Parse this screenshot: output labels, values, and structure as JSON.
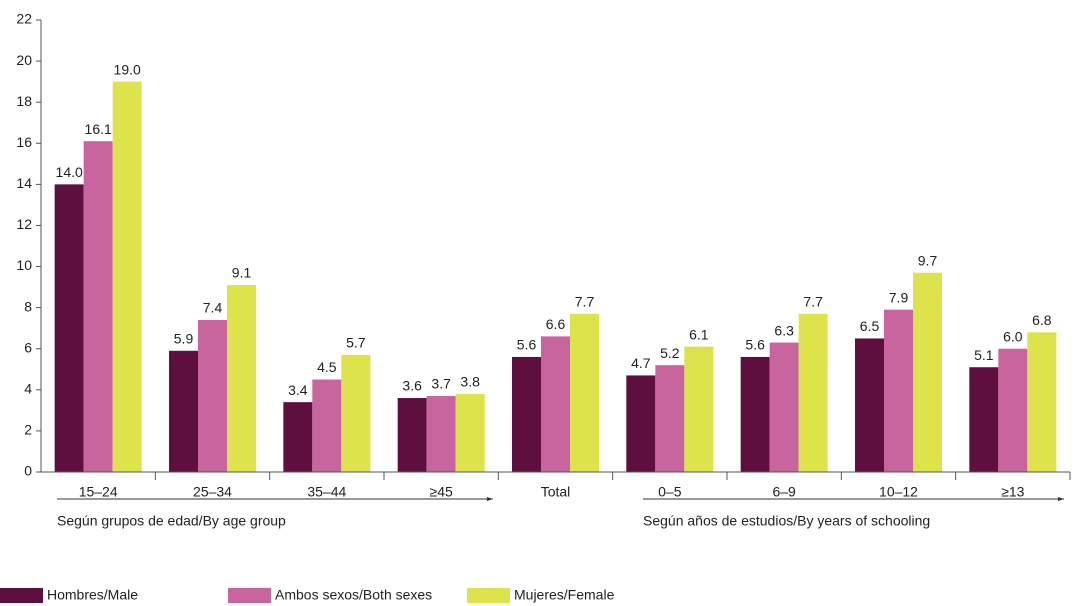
{
  "chart_data": {
    "type": "bar",
    "categories": [
      "15–24",
      "25–34",
      "35–44",
      "≥45",
      "Total",
      "0–5",
      "6–9",
      "10–12",
      "≥13"
    ],
    "series": [
      {
        "name": "Hombres/Male",
        "color": "#5e0f3e",
        "values": [
          14.0,
          5.9,
          3.4,
          3.6,
          5.6,
          4.7,
          5.6,
          6.5,
          5.1
        ],
        "value_labels": [
          "14.0",
          "5.9",
          "3.4",
          "3.6",
          "5.6",
          "4.7",
          "5.6",
          "6.5",
          "5.1"
        ]
      },
      {
        "name": "Ambos sexos/Both sexes",
        "color": "#c8649e",
        "values": [
          16.1,
          7.4,
          4.5,
          3.7,
          6.6,
          5.2,
          6.3,
          7.9,
          6.0
        ],
        "value_labels": [
          "16.1",
          "7.4",
          "4.5",
          "3.7",
          "6.6",
          "5.2",
          "6.3",
          "7.9",
          "6.0"
        ]
      },
      {
        "name": "Mujeres/Female",
        "color": "#dde34a",
        "values": [
          19.0,
          9.1,
          5.7,
          3.8,
          7.7,
          6.1,
          7.7,
          9.7,
          6.8
        ],
        "value_labels": [
          "19.0",
          "9.1",
          "5.7",
          "3.8",
          "7.7",
          "6.1",
          "7.7",
          "9.7",
          "6.8"
        ]
      }
    ],
    "annotations": [
      "Según grupos de edad/By age group",
      "Según años de estudios/By years of schooling"
    ],
    "ylim": [
      0,
      22
    ],
    "yticks": [
      0,
      2,
      4,
      6,
      8,
      10,
      12,
      14,
      16,
      18,
      20,
      22
    ],
    "grid": false,
    "legend": "bottom"
  }
}
